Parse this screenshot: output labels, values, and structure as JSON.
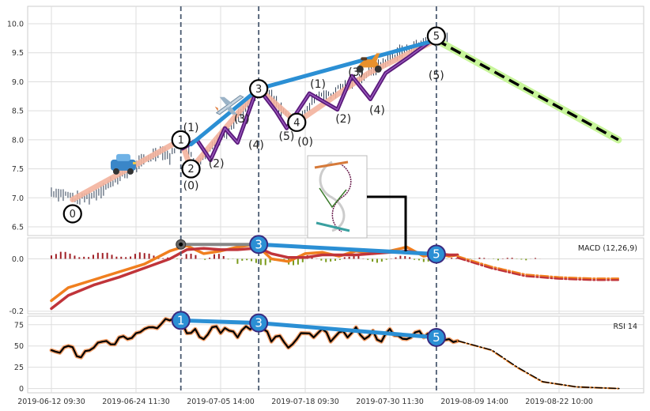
{
  "chart_data": [
    {
      "type": "candlestick",
      "panel": "price",
      "ylim": [
        6.35,
        10.3
      ],
      "yticks": [
        "6.5",
        "7.0",
        "7.5",
        "8.0",
        "8.5",
        "9.0",
        "9.5",
        "10.0"
      ],
      "yticks_values": [
        6.5,
        7.0,
        7.5,
        8.0,
        8.5,
        9.0,
        9.5,
        10.0
      ],
      "xlim": [
        0,
        70
      ],
      "price_path": [
        [
          0,
          7.1
        ],
        [
          2,
          7.05
        ],
        [
          3,
          6.97
        ],
        [
          5,
          7.05
        ],
        [
          7,
          7.25
        ],
        [
          9,
          7.45
        ],
        [
          11,
          7.65
        ],
        [
          13,
          7.82
        ],
        [
          14,
          7.7
        ],
        [
          15.2,
          8.02
        ],
        [
          16,
          7.85
        ],
        [
          17,
          7.6
        ],
        [
          18,
          7.68
        ],
        [
          19,
          7.9
        ],
        [
          20,
          8.05
        ],
        [
          21,
          8.2
        ],
        [
          22,
          8.4
        ],
        [
          23,
          8.55
        ],
        [
          24,
          8.75
        ],
        [
          25,
          8.88
        ],
        [
          26,
          8.75
        ],
        [
          27,
          8.55
        ],
        [
          28,
          8.4
        ],
        [
          29,
          8.3
        ],
        [
          30,
          8.45
        ],
        [
          31,
          8.7
        ],
        [
          32,
          8.8
        ],
        [
          33,
          8.75
        ],
        [
          34,
          8.9
        ],
        [
          35,
          8.95
        ],
        [
          36,
          9.05
        ],
        [
          37,
          9.1
        ],
        [
          38,
          9.2
        ],
        [
          39,
          9.3
        ],
        [
          40,
          9.4
        ],
        [
          41,
          9.5
        ],
        [
          42,
          9.55
        ],
        [
          43,
          9.6
        ],
        [
          44,
          9.7
        ],
        [
          45,
          9.75
        ],
        [
          45.7,
          9.7
        ]
      ],
      "wave_points": {
        "x": [
          2.5,
          15.3,
          16.5,
          24.5,
          29,
          37.5,
          45.5
        ],
        "y": [
          6.97,
          8.0,
          7.5,
          8.88,
          8.3,
          9.15,
          9.72
        ],
        "labels": [
          "0",
          "1",
          "2",
          "3",
          "4",
          "",
          "5"
        ]
      },
      "wave_labels_primary": [
        {
          "text": "(1)",
          "x": 16.5,
          "y": 8.15
        },
        {
          "text": "(2)",
          "x": 19.5,
          "y": 7.53
        },
        {
          "text": "(3)",
          "x": 22.5,
          "y": 8.3
        },
        {
          "text": "(4)",
          "x": 24.2,
          "y": 7.85
        },
        {
          "text": "(5)",
          "x": 27.8,
          "y": 8.0
        },
        {
          "text": "(0)",
          "x": 16.5,
          "y": 7.15
        },
        {
          "text": "(1)",
          "x": 31.5,
          "y": 8.9
        },
        {
          "text": "(2)",
          "x": 34.5,
          "y": 8.3
        },
        {
          "text": "(3)",
          "x": 36,
          "y": 9.1
        },
        {
          "text": "(4)",
          "x": 38.5,
          "y": 8.45
        },
        {
          "text": "(5)",
          "x": 45.5,
          "y": 9.05
        },
        {
          "text": "(0)",
          "x": 30,
          "y": 7.9
        }
      ],
      "sub_wave_1": {
        "x": [
          15.5,
          17.2,
          18.8,
          20.5,
          22.0,
          24.3
        ],
        "y": [
          7.85,
          8.0,
          7.65,
          8.2,
          7.95,
          8.88
        ]
      },
      "sub_wave_2": {
        "x": [
          24.5,
          26.5,
          27.8,
          30.5,
          33.8,
          35.5,
          37.7,
          39.5,
          42,
          44.8
        ],
        "y": [
          8.88,
          8.5,
          8.2,
          8.8,
          8.52,
          9.1,
          8.7,
          9.15,
          9.4,
          9.7
        ]
      },
      "trend_lines": {
        "blue": {
          "x": [
            16.5,
            24.5,
            45.5
          ],
          "y": [
            7.92,
            8.88,
            9.72
          ]
        },
        "forecast": {
          "x": [
            45.5,
            67
          ],
          "y": [
            9.72,
            8.0
          ]
        }
      },
      "vlines_x": [
        15.3,
        24.5,
        45.5
      ],
      "icons": [
        {
          "name": "car-icon",
          "x": 8.5,
          "y": 7.55
        },
        {
          "name": "airplane-icon",
          "x": 21.0,
          "y": 8.6
        },
        {
          "name": "scooter-icon",
          "x": 37.5,
          "y": 9.3
        }
      ]
    },
    {
      "type": "line",
      "panel": "macd",
      "title": "MACD (12,26,9)",
      "ylim": [
        -0.21,
        0.08
      ],
      "yticks": [
        "0.0",
        "-0.2"
      ],
      "yticks_values": [
        0.0,
        -0.2
      ],
      "series": [
        {
          "color": "#f07f1f",
          "values": [
            [
              0,
              -0.16
            ],
            [
              2,
              -0.11
            ],
            [
              5,
              -0.08
            ],
            [
              8,
              -0.05
            ],
            [
              11,
              -0.02
            ],
            [
              14,
              0.03
            ],
            [
              16,
              0.05
            ],
            [
              18,
              0.02
            ],
            [
              20,
              0.03
            ],
            [
              22,
              0.045
            ],
            [
              24,
              0.055
            ],
            [
              25,
              0.03
            ],
            [
              26,
              0.0
            ],
            [
              28,
              -0.01
            ],
            [
              30,
              0.02
            ],
            [
              32,
              0.025
            ],
            [
              34,
              0.01
            ],
            [
              36,
              0.03
            ],
            [
              38,
              0.02
            ],
            [
              40,
              0.03
            ],
            [
              42,
              0.045
            ],
            [
              44,
              0.01
            ],
            [
              45.5,
              0.02
            ],
            [
              47,
              0.01
            ],
            [
              48,
              0.015
            ]
          ]
        },
        {
          "color": "#c0343a",
          "values": [
            [
              0,
              -0.19
            ],
            [
              2,
              -0.14
            ],
            [
              5,
              -0.1
            ],
            [
              8,
              -0.07
            ],
            [
              11,
              -0.035
            ],
            [
              14,
              0.0
            ],
            [
              16,
              0.035
            ],
            [
              18,
              0.04
            ],
            [
              20,
              0.035
            ],
            [
              22,
              0.035
            ],
            [
              24,
              0.04
            ],
            [
              25,
              0.035
            ],
            [
              26,
              0.02
            ],
            [
              28,
              0.005
            ],
            [
              30,
              0.005
            ],
            [
              32,
              0.015
            ],
            [
              34,
              0.015
            ],
            [
              36,
              0.015
            ],
            [
              38,
              0.02
            ],
            [
              40,
              0.025
            ],
            [
              42,
              0.03
            ],
            [
              44,
              0.02
            ],
            [
              45.5,
              0.02
            ],
            [
              47,
              0.015
            ],
            [
              48,
              0.015
            ]
          ]
        }
      ],
      "forecast": [
        [
          48,
          0.01
        ],
        [
          52,
          -0.03
        ],
        [
          56,
          -0.06
        ],
        [
          60,
          -0.07
        ],
        [
          64,
          -0.075
        ],
        [
          67,
          -0.075
        ]
      ],
      "trend_line": {
        "x": [
          15.3,
          24.5,
          45.5
        ],
        "y": [
          0.055,
          0.055,
          0.018
        ]
      },
      "points": {
        "labels": [
          "3",
          "5"
        ],
        "x": [
          24.5,
          45.5
        ],
        "y": [
          0.055,
          0.018
        ]
      }
    },
    {
      "type": "line",
      "panel": "rsi",
      "title": "RSI 14",
      "ylim": [
        -5,
        85
      ],
      "yticks": [
        "0",
        "25",
        "50",
        "75"
      ],
      "yticks_values": [
        0,
        25,
        50,
        75
      ],
      "xtick_labels": [
        "2019-06-12 09:30",
        "2019-06-24 11:30",
        "2019-07-05 14:00",
        "2019-07-18 09:30",
        "2019-07-30 11:30",
        "2019-08-09 14:00",
        "2019-08-22 10:00"
      ],
      "xtick_positions": [
        0,
        10,
        20,
        30,
        40,
        50,
        60
      ],
      "values_x": [
        0,
        1,
        2,
        3,
        4,
        5,
        6,
        7,
        8,
        9,
        10,
        11,
        12,
        13,
        14,
        15,
        16,
        17,
        18,
        19,
        20,
        21,
        22,
        23,
        24,
        25,
        26,
        27,
        28,
        29,
        30,
        31,
        32,
        33,
        34,
        35,
        36,
        37,
        38,
        39,
        40,
        41,
        42,
        43,
        44,
        45,
        46,
        47,
        48
      ],
      "values_y": [
        45,
        42,
        50,
        38,
        44,
        48,
        55,
        52,
        60,
        58,
        65,
        70,
        72,
        76,
        80,
        78,
        65,
        70,
        58,
        72,
        65,
        68,
        60,
        73,
        75,
        70,
        55,
        62,
        48,
        58,
        65,
        60,
        70,
        55,
        66,
        60,
        72,
        58,
        68,
        55,
        70,
        62,
        58,
        66,
        60,
        62,
        56,
        58,
        56
      ],
      "forecast": [
        [
          48,
          56
        ],
        [
          52,
          45
        ],
        [
          55,
          25
        ],
        [
          58,
          8
        ],
        [
          62,
          2
        ],
        [
          67,
          0
        ]
      ],
      "trend_line": {
        "x": [
          15.3,
          24.5,
          45.5
        ],
        "y": [
          80,
          77,
          60
        ]
      },
      "points": {
        "labels": [
          "1",
          "3",
          "5"
        ],
        "x": [
          15.3,
          24.5,
          45.5
        ],
        "y": [
          80,
          77,
          60
        ]
      }
    }
  ]
}
